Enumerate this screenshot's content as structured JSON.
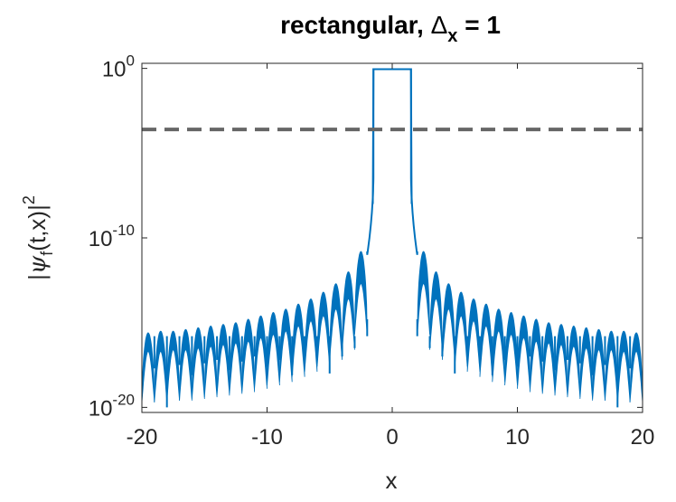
{
  "chart_data": {
    "type": "line",
    "title": {
      "prefix": "rectangular, ",
      "symbol": "Δ",
      "subscript": "x",
      "suffix": " = 1"
    },
    "xlabel": "x",
    "ylabel": {
      "prefix": "|",
      "psi": "ψ",
      "sub": "f",
      "suffix": "(t,x)|",
      "sup": "2"
    },
    "xlim": [
      -20,
      20
    ],
    "ylim_log10": [
      -20.3,
      0.3
    ],
    "yscale": "log",
    "x_ticks": [
      -20,
      -10,
      0,
      10,
      20
    ],
    "x_tick_labels": [
      "-20",
      "-10",
      "0",
      "10",
      "20"
    ],
    "y_ticks": [
      {
        "value": "1e0",
        "base": "10",
        "exp": "0"
      },
      {
        "value": "1e-10",
        "base": "10",
        "exp": "-10"
      },
      {
        "value": "1e-20",
        "base": "10",
        "exp": "-20"
      }
    ],
    "grid": false,
    "series": [
      {
        "color": "#0072BD",
        "plateau": {
          "x": [
            -1.5,
            1.5
          ],
          "y_log10": -0.05
        },
        "side_lobes": {
          "centers": [
            -19.5,
            -18.5,
            -17.5,
            -16.5,
            -15.5,
            -14.5,
            -13.5,
            -12.5,
            -11.5,
            -10.5,
            -9.5,
            -8.5,
            -7.5,
            -6.5,
            -5.5,
            -4.5,
            -3.5,
            -2.5,
            2.5,
            3.5,
            4.5,
            5.5,
            6.5,
            7.5,
            8.5,
            9.5,
            10.5,
            11.5,
            12.5,
            13.5,
            14.5,
            15.5,
            16.5,
            17.5,
            18.5,
            19.5
          ],
          "peak_log10": [
            -15.6,
            -15.5,
            -15.5,
            -15.4,
            -15.3,
            -15.2,
            -15.1,
            -15.0,
            -14.8,
            -14.6,
            -14.4,
            -14.2,
            -13.9,
            -13.6,
            -13.2,
            -12.7,
            -12.0,
            -10.8,
            -10.8,
            -12.0,
            -12.7,
            -13.2,
            -13.6,
            -13.9,
            -14.2,
            -14.4,
            -14.6,
            -14.8,
            -15.0,
            -15.1,
            -15.2,
            -15.3,
            -15.4,
            -15.5,
            -15.5,
            -15.6
          ],
          "min_log10": [
            -16.7,
            -16.7,
            -16.6,
            -16.6,
            -16.5,
            -16.4,
            -16.3,
            -16.2,
            -16.1,
            -15.9,
            -15.7,
            -15.5,
            -15.2,
            -14.9,
            -14.6,
            -14.2,
            -13.6,
            -12.7,
            -12.7,
            -13.6,
            -14.2,
            -14.6,
            -14.9,
            -15.2,
            -15.5,
            -15.7,
            -15.9,
            -16.1,
            -16.2,
            -16.3,
            -16.4,
            -16.5,
            -16.6,
            -16.6,
            -16.7,
            -16.7
          ]
        },
        "dips": {
          "x": [
            -19,
            -18,
            -17,
            -16,
            -15,
            -14,
            -13,
            -12,
            -11,
            -10,
            -9,
            -8,
            -7,
            -6,
            -5,
            -4,
            -3,
            -2,
            2,
            3,
            4,
            5,
            6,
            7,
            8,
            9,
            10,
            11,
            12,
            13,
            14,
            15,
            16,
            17,
            18,
            19
          ],
          "y_log10": [
            -17.7,
            -20.0,
            -17.5,
            -18.1,
            -17.4,
            -17.2,
            -17.8,
            -17.3,
            -17.0,
            -17.6,
            -17.2,
            -18.1,
            -17.4,
            -17.2,
            -18.0,
            -17.0,
            -16.5,
            -14.8,
            -14.8,
            -16.5,
            -17.0,
            -18.0,
            -17.2,
            -17.4,
            -18.1,
            -17.2,
            -17.6,
            -17.0,
            -17.3,
            -17.8,
            -17.2,
            -17.4,
            -18.1,
            -17.5,
            -20.0,
            -17.7
          ]
        }
      },
      {
        "color": "#666666",
        "style": "dashed",
        "y_log10": -3.6
      }
    ]
  }
}
